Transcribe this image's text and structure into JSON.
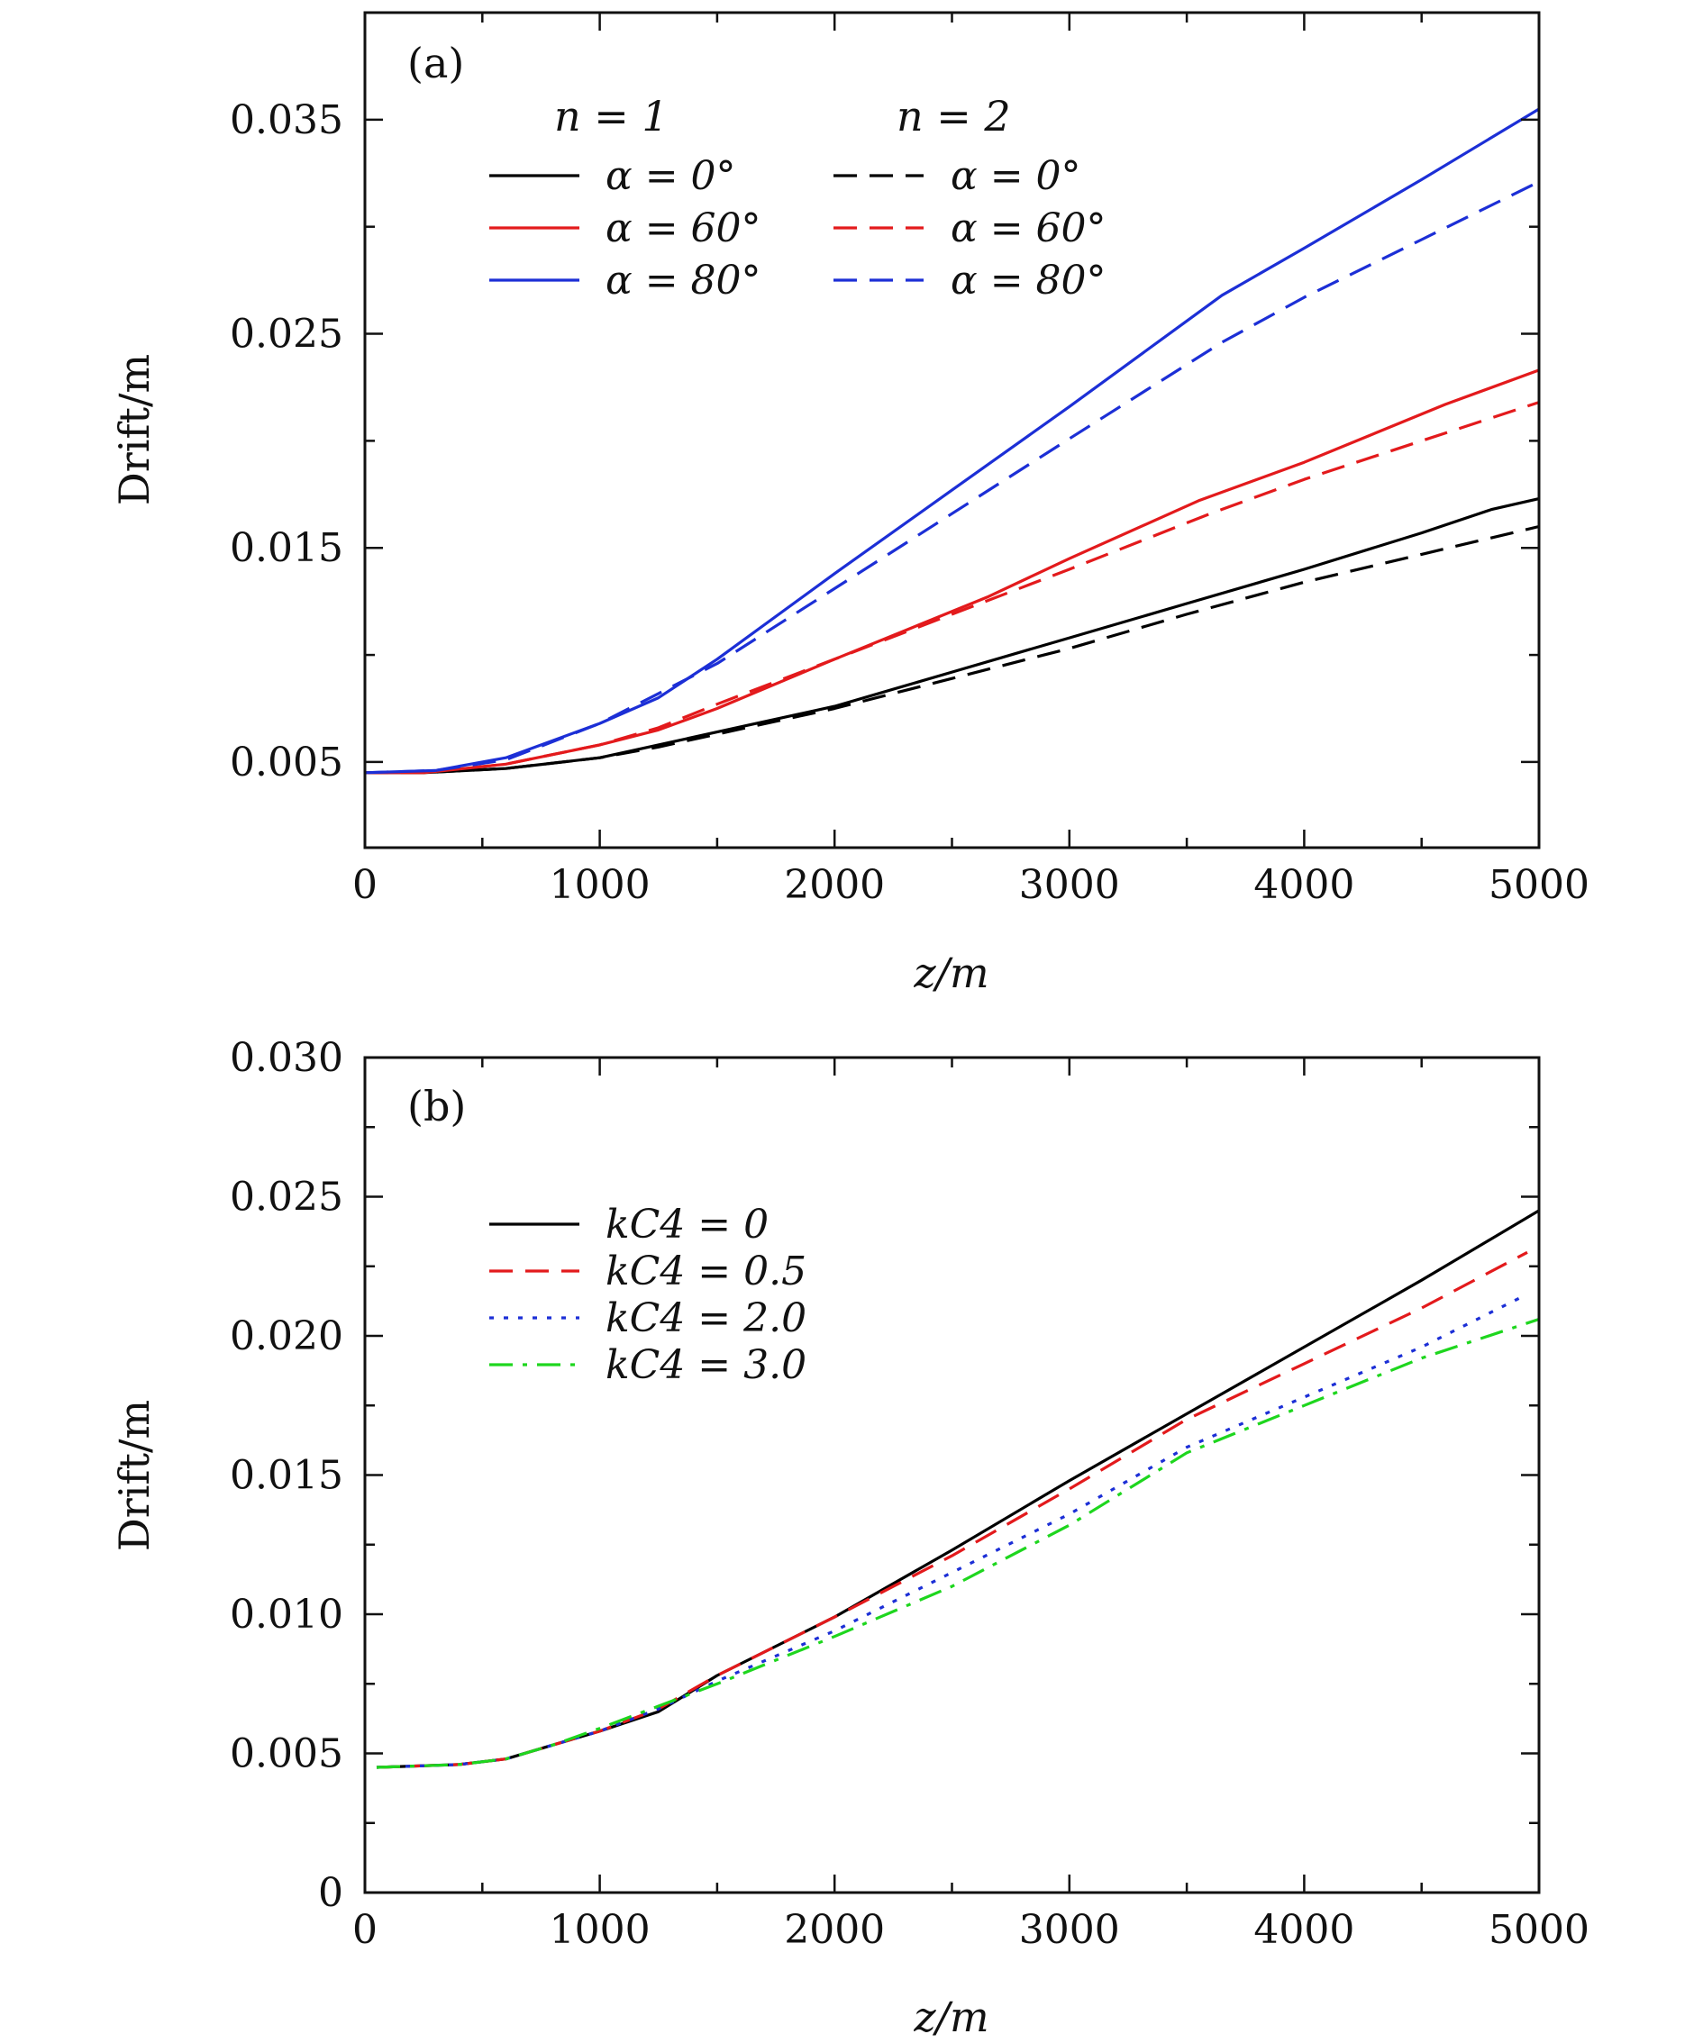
{
  "chart_data": [
    {
      "type": "line",
      "panel_label": "(a)",
      "xlabel": "z/m",
      "ylabel": "Drift/m",
      "xlim": [
        0,
        5000
      ],
      "ylim": [
        0.001,
        0.04
      ],
      "xticks": [
        0,
        1000,
        2000,
        3000,
        4000,
        5000
      ],
      "xtick_labels": [
        "0",
        "1000",
        "2000",
        "3000",
        "4000",
        "5000"
      ],
      "yticks": [
        0.005,
        0.015,
        0.025,
        0.035
      ],
      "ytick_labels": [
        "0.005",
        "0.015",
        "0.025",
        "0.035"
      ],
      "grid": false,
      "legend_placement": "top-left",
      "legend_headers": [
        "n = 1",
        "n = 2"
      ],
      "series": [
        {
          "name": "α = 0°",
          "group": "n = 1",
          "color": "#000000",
          "dash": "solid",
          "x": [
            0,
            250,
            600,
            1000,
            1250,
            1500,
            2000,
            2500,
            3000,
            3500,
            4000,
            4500,
            4800,
            5000
          ],
          "y": [
            0.0045,
            0.0045,
            0.0047,
            0.0052,
            0.0058,
            0.0064,
            0.0076,
            0.0092,
            0.0108,
            0.0124,
            0.014,
            0.0157,
            0.0168,
            0.0173
          ]
        },
        {
          "name": "α = 60°",
          "group": "n = 1",
          "color": "#e31a1c",
          "dash": "solid",
          "x": [
            0,
            250,
            600,
            1000,
            1250,
            1500,
            2000,
            2650,
            3000,
            3550,
            4000,
            4600,
            5000
          ],
          "y": [
            0.0045,
            0.0045,
            0.0049,
            0.0058,
            0.0065,
            0.0075,
            0.0098,
            0.0127,
            0.0145,
            0.0172,
            0.019,
            0.0217,
            0.0233
          ]
        },
        {
          "name": "α = 80°",
          "group": "n = 1",
          "color": "#1c2fd6",
          "dash": "solid",
          "x": [
            0,
            300,
            600,
            1000,
            1250,
            1500,
            2000,
            2500,
            3000,
            3650,
            4000,
            4500,
            5000
          ],
          "y": [
            0.0045,
            0.0046,
            0.0052,
            0.0068,
            0.008,
            0.0098,
            0.0138,
            0.0177,
            0.0216,
            0.0268,
            0.029,
            0.0322,
            0.0355
          ]
        },
        {
          "name": "α = 0°",
          "group": "n = 2",
          "color": "#000000",
          "dash": "dashed",
          "x": [
            0,
            250,
            600,
            1000,
            1250,
            1500,
            2000,
            2500,
            3000,
            3500,
            4000,
            4500,
            5000
          ],
          "y": [
            0.0045,
            0.0045,
            0.0047,
            0.0052,
            0.0057,
            0.0063,
            0.0075,
            0.0089,
            0.0103,
            0.0119,
            0.0134,
            0.0147,
            0.016
          ]
        },
        {
          "name": "α = 60°",
          "group": "n = 2",
          "color": "#e31a1c",
          "dash": "dashed",
          "x": [
            0,
            250,
            600,
            1000,
            1250,
            1500,
            2000,
            2500,
            3000,
            3600,
            4000,
            4500,
            5000
          ],
          "y": [
            0.0045,
            0.0045,
            0.0049,
            0.0058,
            0.0066,
            0.0077,
            0.0098,
            0.0119,
            0.014,
            0.0166,
            0.0182,
            0.02,
            0.0218
          ]
        },
        {
          "name": "α = 80°",
          "group": "n = 2",
          "color": "#1c2fd6",
          "dash": "dashed",
          "x": [
            0,
            300,
            600,
            1000,
            1250,
            1500,
            2000,
            2500,
            3000,
            3650,
            4000,
            4500,
            5000
          ],
          "y": [
            0.0045,
            0.0046,
            0.0051,
            0.0068,
            0.0082,
            0.0096,
            0.0131,
            0.0166,
            0.0201,
            0.0246,
            0.0267,
            0.0294,
            0.0321
          ]
        }
      ]
    },
    {
      "type": "line",
      "panel_label": "(b)",
      "xlabel": "z/m",
      "ylabel": "Drift/m",
      "xlim": [
        0,
        5000
      ],
      "ylim": [
        0,
        0.03
      ],
      "xticks": [
        0,
        1000,
        2000,
        3000,
        4000,
        5000
      ],
      "xtick_labels": [
        "0",
        "1000",
        "2000",
        "3000",
        "4000",
        "5000"
      ],
      "yticks": [
        0,
        0.005,
        0.01,
        0.015,
        0.02,
        0.025,
        0.03
      ],
      "ytick_labels": [
        "0",
        "0.005",
        "0.010",
        "0.015",
        "0.020",
        "0.025",
        "0.030"
      ],
      "grid": false,
      "legend_placement": "top-left",
      "series": [
        {
          "name": "kC4 = 0",
          "color": "#000000",
          "dash": "solid",
          "x": [
            50,
            400,
            600,
            800,
            1000,
            1250,
            1500,
            2000,
            2500,
            3000,
            3500,
            4000,
            4500,
            5000
          ],
          "y": [
            0.0045,
            0.0046,
            0.0048,
            0.0053,
            0.0058,
            0.0065,
            0.0078,
            0.0099,
            0.0123,
            0.0148,
            0.0172,
            0.0196,
            0.022,
            0.0245
          ]
        },
        {
          "name": "kC4 = 0.5",
          "color": "#e31a1c",
          "dash": "dashed",
          "x": [
            50,
            400,
            600,
            800,
            1000,
            1250,
            1500,
            2000,
            2500,
            3000,
            3500,
            4000,
            4500,
            4950
          ],
          "y": [
            0.0045,
            0.0046,
            0.0048,
            0.0053,
            0.0058,
            0.0066,
            0.0078,
            0.0099,
            0.0121,
            0.0145,
            0.017,
            0.019,
            0.021,
            0.023
          ]
        },
        {
          "name": "kC4 = 2.0",
          "color": "#1c2fd6",
          "dash": "dotted",
          "x": [
            50,
            400,
            600,
            800,
            1000,
            1250,
            1500,
            2000,
            2500,
            3000,
            3500,
            4000,
            4500,
            4950
          ],
          "y": [
            0.0045,
            0.0046,
            0.0048,
            0.0053,
            0.0058,
            0.0066,
            0.0076,
            0.0094,
            0.0115,
            0.0136,
            0.016,
            0.0178,
            0.0196,
            0.0215
          ]
        },
        {
          "name": "kC4 = 3.0",
          "color": "#1ed61e",
          "dash": "dashdot",
          "x": [
            50,
            400,
            600,
            800,
            1000,
            1250,
            1500,
            2000,
            2500,
            3000,
            3500,
            4000,
            4500,
            5000
          ],
          "y": [
            0.0045,
            0.0046,
            0.0048,
            0.0053,
            0.0059,
            0.0067,
            0.0075,
            0.0092,
            0.011,
            0.0132,
            0.0158,
            0.0175,
            0.0192,
            0.0206
          ]
        }
      ]
    }
  ]
}
